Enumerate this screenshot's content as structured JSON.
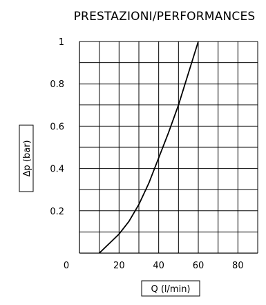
{
  "chart_data": {
    "type": "line",
    "title": "PRESTAZIONI/PERFORMANCES",
    "xlabel": "Q (l/min)",
    "ylabel": "Δp (bar)",
    "xlim": [
      0,
      90
    ],
    "ylim": [
      0,
      1
    ],
    "x_ticks": [
      0,
      20,
      40,
      60,
      80
    ],
    "y_ticks": [
      0.2,
      0.4,
      0.6,
      0.8,
      1
    ],
    "x_tick_labels": [
      "0",
      "20",
      "40",
      "60",
      "80"
    ],
    "y_tick_labels": [
      "0.2",
      "0.4",
      "0.6",
      "0.8",
      "1"
    ],
    "grid": true,
    "legend": "none",
    "series": [
      {
        "x": [
          10,
          15,
          20,
          25,
          30,
          35,
          40,
          45,
          50,
          55,
          60
        ],
        "y": [
          0.0,
          0.045,
          0.09,
          0.15,
          0.23,
          0.33,
          0.45,
          0.57,
          0.7,
          0.85,
          1.0
        ]
      }
    ],
    "colors": {
      "line": "#000000",
      "grid": "#000000"
    }
  }
}
